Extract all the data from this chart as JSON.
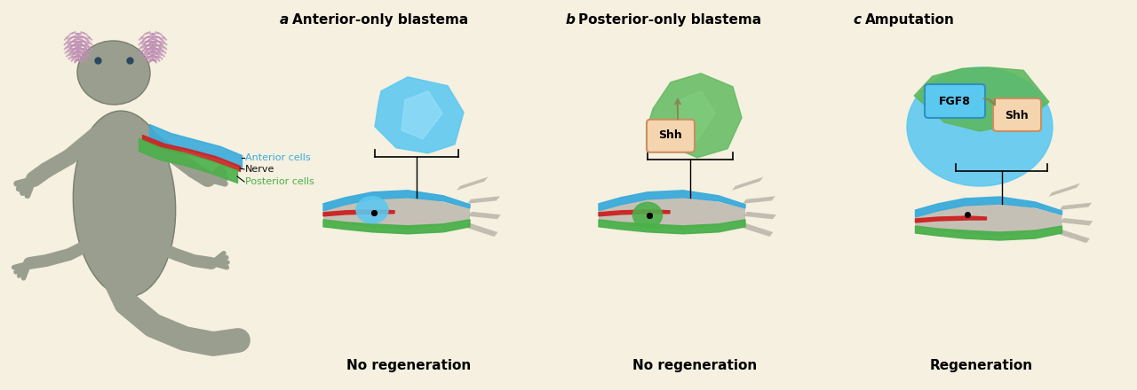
{
  "bg_color": "#f5f0e0",
  "title_a": "Anterior-only blastema",
  "title_b": "Posterior-only blastema",
  "title_c": "Amputation",
  "label_a": "a",
  "label_b": "b",
  "label_c": "c",
  "result_a": "No regeneration",
  "result_b": "No regeneration",
  "result_c": "Regeneration",
  "anterior_color": "#3aabdb",
  "posterior_color": "#4ab04a",
  "nerve_color": "#cc2222",
  "blastema_blue": "#5bc8f0",
  "blastema_green": "#5cb85c",
  "shh_fill": "#f5d5b0",
  "shh_edge": "#c89060",
  "annotation_anterior": "Anterior cells",
  "annotation_nerve": "Nerve",
  "annotation_posterior": "Posterior cells"
}
